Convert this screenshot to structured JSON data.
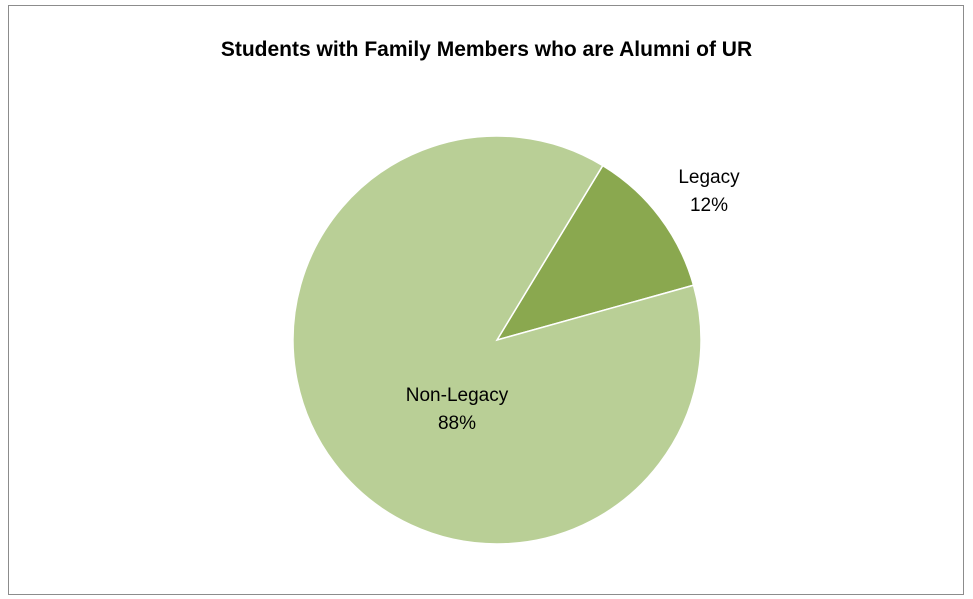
{
  "chart_data": {
    "type": "pie",
    "title": "Students with Family Members who are Alumni of UR",
    "slices": [
      {
        "name": "Legacy",
        "value": 12,
        "value_label": "12%",
        "color": "#8aa84f"
      },
      {
        "name": "Non-Legacy",
        "value": 88,
        "value_label": "88%",
        "color": "#b9cf96"
      }
    ],
    "legend": "none",
    "labels": "data labels with category name and percentage"
  }
}
